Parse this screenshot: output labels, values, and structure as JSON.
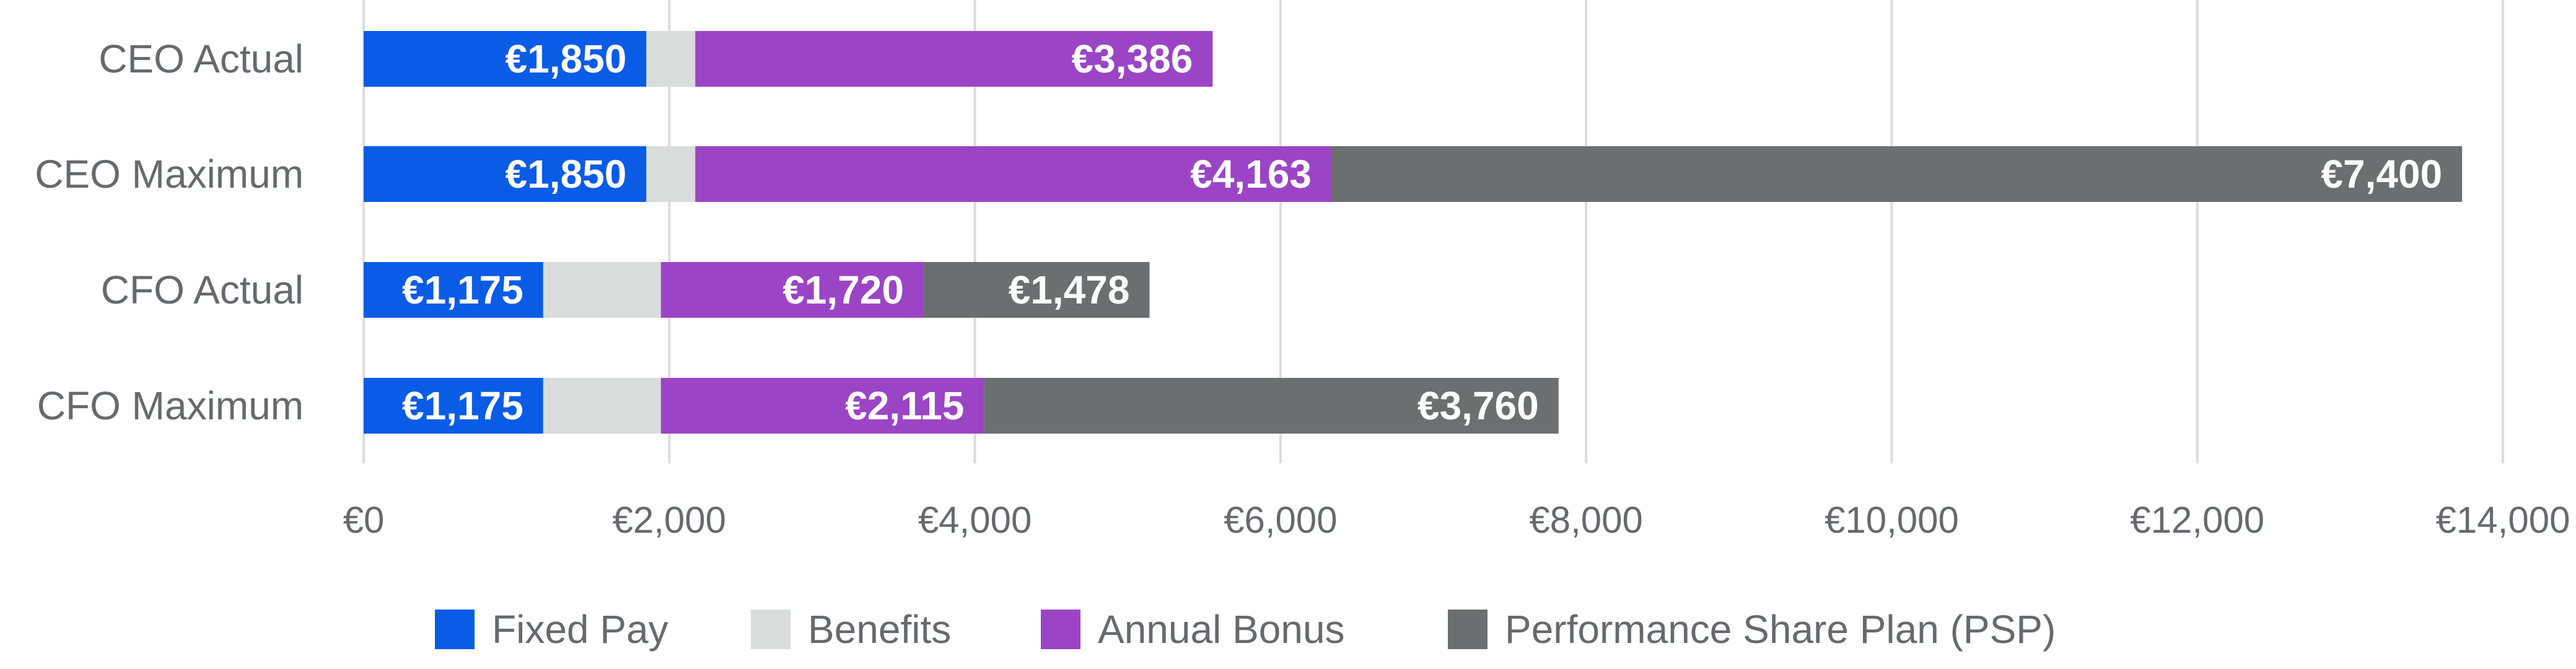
{
  "chart_data": {
    "type": "bar",
    "orientation": "horizontal",
    "stacked": true,
    "categories": [
      "CEO Actual",
      "CEO Maximum",
      "CFO Actual",
      "CFO Maximum"
    ],
    "series": [
      {
        "name": "Fixed Pay",
        "color": "#0a5ce6",
        "values": [
          1850,
          1850,
          1175,
          1175
        ],
        "labels": [
          "€1,850",
          "€1,850",
          "€1,175",
          "€1,175"
        ]
      },
      {
        "name": "Benefits",
        "color": "#dadcdb",
        "values": [
          320,
          320,
          770,
          770
        ],
        "labels": [
          "",
          "",
          "",
          ""
        ]
      },
      {
        "name": "Annual Bonus",
        "color": "#9b45c6",
        "values": [
          3386,
          4163,
          1720,
          2115
        ],
        "labels": [
          "€3,386",
          "€4,163",
          "€1,720",
          "€2,115"
        ]
      },
      {
        "name": "Performance Share Plan (PSP)",
        "color": "#6b6f6f",
        "values": [
          0,
          7400,
          1478,
          3760
        ],
        "labels": [
          "",
          "€7,400",
          "€1,478",
          "€3,760"
        ]
      }
    ],
    "xlim": [
      0,
      14000
    ],
    "x_ticks": [
      0,
      2000,
      4000,
      6000,
      8000,
      10000,
      12000,
      14000
    ],
    "x_tick_labels": [
      "€0",
      "€2,000",
      "€4,000",
      "€6,000",
      "€8,000",
      "€10,000",
      "€12,000",
      "€14,000"
    ],
    "grid": true,
    "legend_position": "bottom",
    "title": "",
    "xlabel": "",
    "ylabel": ""
  }
}
